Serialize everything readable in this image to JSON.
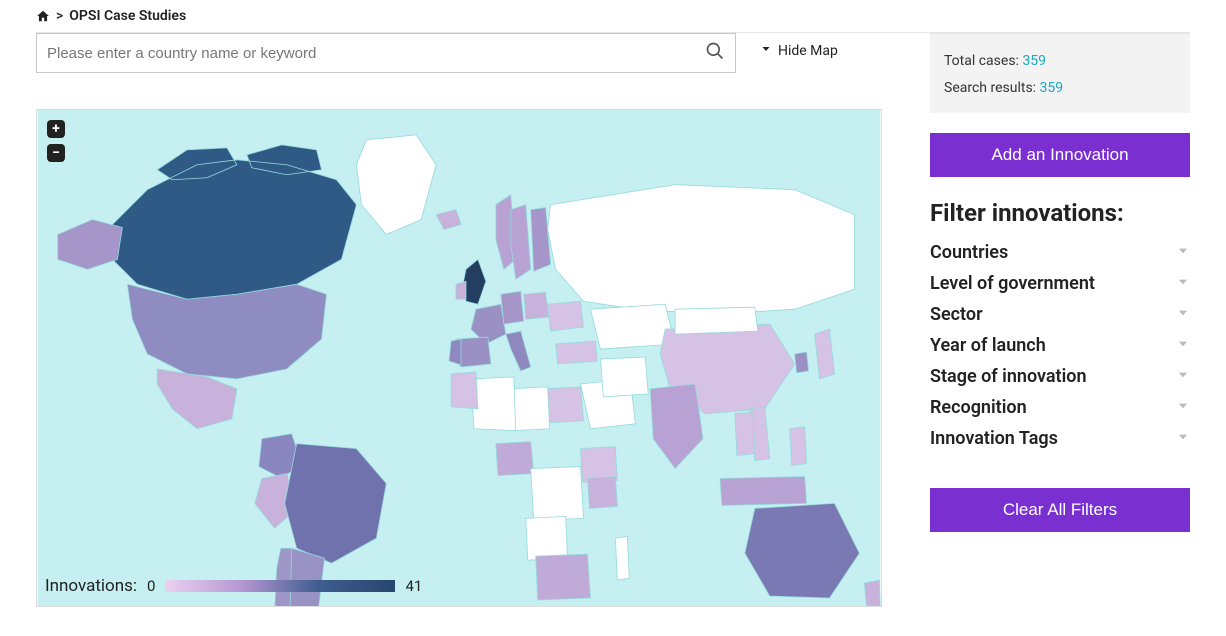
{
  "breadcrumb": {
    "current": "OPSI Case Studies"
  },
  "search": {
    "placeholder": "Please enter a country name or keyword"
  },
  "map_toggle": {
    "label": "Hide Map"
  },
  "map": {
    "background_color": "#c5eff1",
    "land_empty_color": "#ffffff",
    "land_stroke": "#95dadc",
    "legend_label": "Innovations:",
    "legend_min": "0",
    "legend_max": "41",
    "gradient_colors": [
      "#ead1f0",
      "#b597d2",
      "#3f5d8f",
      "#27466f"
    ],
    "countries": [
      {
        "name": "Canada",
        "color": "#2f5a85"
      },
      {
        "name": "USA",
        "color": "#8f8cc1"
      },
      {
        "name": "Alaska",
        "color": "#a695c9"
      },
      {
        "name": "Mexico",
        "color": "#c8b2db"
      },
      {
        "name": "Colombia",
        "color": "#8a86bf"
      },
      {
        "name": "Peru",
        "color": "#c8b2db"
      },
      {
        "name": "Brazil",
        "color": "#6f72ad"
      },
      {
        "name": "Argentina",
        "color": "#9992c5"
      },
      {
        "name": "Chile",
        "color": "#9e96c7"
      },
      {
        "name": "Greenland",
        "color": "#ffffff"
      },
      {
        "name": "Iceland",
        "color": "#c8b2db"
      },
      {
        "name": "UK",
        "color": "#243e61"
      },
      {
        "name": "Ireland",
        "color": "#c8b2db"
      },
      {
        "name": "Norway",
        "color": "#b8a2d3"
      },
      {
        "name": "Sweden",
        "color": "#b8a2d3"
      },
      {
        "name": "Finland",
        "color": "#a695c9"
      },
      {
        "name": "France",
        "color": "#9a90c4"
      },
      {
        "name": "Spain",
        "color": "#9a90c4"
      },
      {
        "name": "Portugal",
        "color": "#8f89c0"
      },
      {
        "name": "Germany",
        "color": "#a695c9"
      },
      {
        "name": "Italy",
        "color": "#8f89c0"
      },
      {
        "name": "Poland",
        "color": "#c8b2db"
      },
      {
        "name": "Ukraine",
        "color": "#d6c2e4"
      },
      {
        "name": "Turkey",
        "color": "#d6c2e4"
      },
      {
        "name": "Russia",
        "color": "#ffffff"
      },
      {
        "name": "Kazakhstan",
        "color": "#ffffff"
      },
      {
        "name": "China",
        "color": "#d6c2e4"
      },
      {
        "name": "Mongolia",
        "color": "#ffffff"
      },
      {
        "name": "India",
        "color": "#b8a2d3"
      },
      {
        "name": "SaudiArabia",
        "color": "#ffffff"
      },
      {
        "name": "Iran",
        "color": "#ffffff"
      },
      {
        "name": "Egypt",
        "color": "#d6c2e4"
      },
      {
        "name": "Libya",
        "color": "#ffffff"
      },
      {
        "name": "Algeria",
        "color": "#ffffff"
      },
      {
        "name": "Morocco",
        "color": "#d6c2e4"
      },
      {
        "name": "Nigeria",
        "color": "#c0aad7"
      },
      {
        "name": "Ethiopia",
        "color": "#d6c2e4"
      },
      {
        "name": "Kenya",
        "color": "#c8b2db"
      },
      {
        "name": "DRC",
        "color": "#ffffff"
      },
      {
        "name": "Angola",
        "color": "#ffffff"
      },
      {
        "name": "SouthAfrica",
        "color": "#c0aad7"
      },
      {
        "name": "Madagascar",
        "color": "#ffffff"
      },
      {
        "name": "Japan",
        "color": "#d6c2e4"
      },
      {
        "name": "SouthKorea",
        "color": "#9a90c4"
      },
      {
        "name": "Indonesia",
        "color": "#b8a2d3"
      },
      {
        "name": "Philippines",
        "color": "#d6c2e4"
      },
      {
        "name": "Vietnam",
        "color": "#d6c2e4"
      },
      {
        "name": "Thailand",
        "color": "#d6c2e4"
      },
      {
        "name": "Australia",
        "color": "#7a79b3"
      },
      {
        "name": "NewZealand",
        "color": "#c8b2db"
      }
    ]
  },
  "stats": {
    "total_label": "Total cases:",
    "total_value": "359",
    "results_label": "Search results:",
    "results_value": "359"
  },
  "buttons": {
    "add_innovation": "Add an Innovation",
    "clear_filters": "Clear All Filters"
  },
  "filters": {
    "heading": "Filter innovations:",
    "items": [
      {
        "label": "Countries"
      },
      {
        "label": "Level of government"
      },
      {
        "label": "Sector"
      },
      {
        "label": "Year of launch"
      },
      {
        "label": "Stage of innovation"
      },
      {
        "label": "Recognition"
      },
      {
        "label": "Innovation Tags"
      }
    ]
  }
}
